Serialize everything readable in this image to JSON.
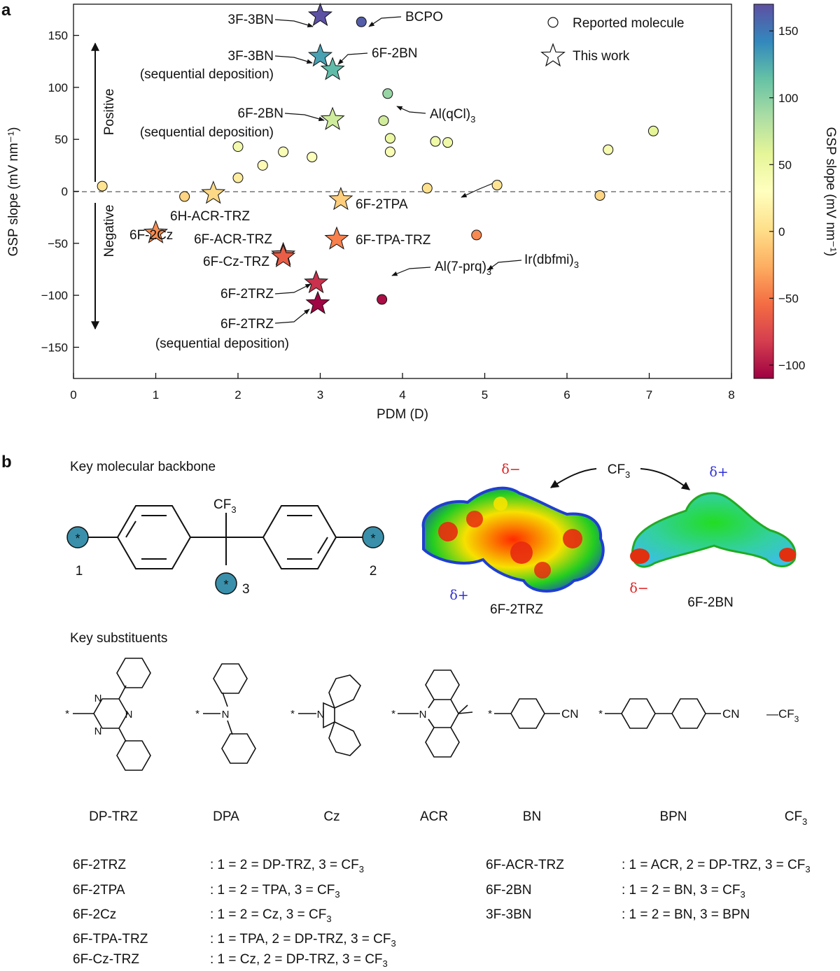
{
  "panel_a": {
    "label": "a",
    "legend": {
      "reported": "Reported molecule",
      "this_work": "This work"
    },
    "positive_label": "Positive",
    "negative_label": "Negative"
  },
  "chart_data": {
    "type": "scatter",
    "xlabel": "PDM (D)",
    "ylabel": "GSP slope (mV nm⁻¹)",
    "xlim": [
      0,
      8
    ],
    "ylim": [
      -180,
      180
    ],
    "x_ticks": [
      "0",
      "1",
      "2",
      "3",
      "4",
      "5",
      "6",
      "7",
      "8"
    ],
    "y_ticks": [
      "150",
      "100",
      "50",
      "0",
      "−50",
      "−100",
      "−150"
    ],
    "reference_line": {
      "y": 0,
      "style": "dashed"
    },
    "colorbar": {
      "label": "GSP slope (mV nm⁻¹)",
      "range": [
        -110,
        170
      ],
      "ticks": [
        "150",
        "100",
        "50",
        "0",
        "−50",
        "−100"
      ],
      "colors": [
        "#9e0142",
        "#d53e4f",
        "#f46d43",
        "#fdae61",
        "#fee08b",
        "#ffffbf",
        "#e6f598",
        "#abdda4",
        "#66c2a5",
        "#3288bd",
        "#5e4fa2"
      ]
    },
    "series": [
      {
        "name": "Reported molecule",
        "marker": "circle",
        "points": [
          {
            "x": 0.35,
            "y": 5
          },
          {
            "x": 1.35,
            "y": -5
          },
          {
            "x": 2.0,
            "y": 43
          },
          {
            "x": 2.0,
            "y": 13
          },
          {
            "x": 2.3,
            "y": 25
          },
          {
            "x": 2.55,
            "y": 38
          },
          {
            "x": 2.9,
            "y": 33
          },
          {
            "x": 3.77,
            "y": 68
          },
          {
            "x": 3.82,
            "y": 94
          },
          {
            "x": 3.85,
            "y": 51
          },
          {
            "x": 3.85,
            "y": 38
          },
          {
            "x": 4.4,
            "y": 48
          },
          {
            "x": 4.55,
            "y": 47
          },
          {
            "x": 4.3,
            "y": 3
          },
          {
            "x": 5.15,
            "y": 6
          },
          {
            "x": 6.4,
            "y": -4
          },
          {
            "x": 6.5,
            "y": 40
          },
          {
            "x": 7.05,
            "y": 58
          },
          {
            "x": 3.5,
            "y": 163
          },
          {
            "x": 4.9,
            "y": -42
          },
          {
            "x": 3.75,
            "y": -104
          }
        ]
      },
      {
        "name": "This work",
        "marker": "star",
        "points": [
          {
            "x": 3.0,
            "y": 169
          },
          {
            "x": 3.0,
            "y": 130
          },
          {
            "x": 3.15,
            "y": 117
          },
          {
            "x": 3.15,
            "y": 69
          },
          {
            "x": 1.7,
            "y": -2
          },
          {
            "x": 3.25,
            "y": -8
          },
          {
            "x": 1.0,
            "y": -40
          },
          {
            "x": 3.2,
            "y": -46
          },
          {
            "x": 2.55,
            "y": -61
          },
          {
            "x": 2.55,
            "y": -63
          },
          {
            "x": 2.95,
            "y": -88
          },
          {
            "x": 2.97,
            "y": -108
          }
        ]
      }
    ],
    "annotations": [
      {
        "text": "3F-3BN"
      },
      {
        "text": "BCPO"
      },
      {
        "text": "3F-3BN"
      },
      {
        "text": "(sequential deposition)"
      },
      {
        "text": "6F-2BN"
      },
      {
        "text": "6F-2BN"
      },
      {
        "text": "(sequential deposition)"
      },
      {
        "text": "Al(qCl)",
        "sub": "3"
      },
      {
        "text": "6H-ACR-TRZ"
      },
      {
        "text": "6F-2TPA"
      },
      {
        "text": "6F-2Cz"
      },
      {
        "text": "6F-ACR-TRZ"
      },
      {
        "text": "6F-Cz-TRZ"
      },
      {
        "text": "6F-TPA-TRZ"
      },
      {
        "text": "Ir(dbfmi)",
        "sub": "3"
      },
      {
        "text": "Al(7-prq)",
        "sub": "3"
      },
      {
        "text": "6F-2TRZ"
      },
      {
        "text": "6F-2TRZ"
      },
      {
        "text": "(sequential deposition)"
      }
    ]
  },
  "panel_b": {
    "label": "b",
    "backbone_title": "Key molecular backbone",
    "cf3_text": "CF",
    "cf3_sub": "3",
    "position_labels": [
      "1",
      "2",
      "3"
    ],
    "attach_marker": "*",
    "delta_minus": "δ−",
    "delta_plus": "δ+",
    "molecule_names": [
      "6F-2TRZ",
      "6F-2BN"
    ],
    "substituents_title": "Key substituents",
    "substituents": [
      "DP-TRZ",
      "DPA",
      "Cz",
      "ACR",
      "BN",
      "BPN",
      "CF"
    ],
    "struct_atoms": {
      "N": "N",
      "CN": "CN",
      "dash_cf": "—CF"
    },
    "definitions": [
      {
        "name": "6F-2TRZ",
        "desc": ": 1 = 2 = DP-TRZ, 3 = CF",
        "sub": "3"
      },
      {
        "name": "6F-2TPA",
        "desc": ": 1 = 2 = TPA, 3 = CF",
        "sub": "3"
      },
      {
        "name": "6F-2Cz",
        "desc": ": 1 = 2 = Cz, 3 = CF",
        "sub": "3"
      },
      {
        "name": "6F-TPA-TRZ",
        "desc": ": 1 = TPA, 2 = DP-TRZ, 3 = CF",
        "sub": "3"
      },
      {
        "name": "6F-Cz-TRZ",
        "desc": ": 1 = Cz, 2 = DP-TRZ, 3 = CF",
        "sub": "3"
      },
      {
        "name": "6F-ACR-TRZ",
        "desc": ": 1 = ACR, 2 = DP-TRZ, 3 = CF",
        "sub": "3"
      },
      {
        "name": "6F-2BN",
        "desc": ": 1 = 2 = BN, 3 = CF",
        "sub": "3"
      },
      {
        "name": "3F-3BN",
        "desc": ": 1 = 2 = BN, 3 = BPN",
        "sub": ""
      }
    ]
  }
}
